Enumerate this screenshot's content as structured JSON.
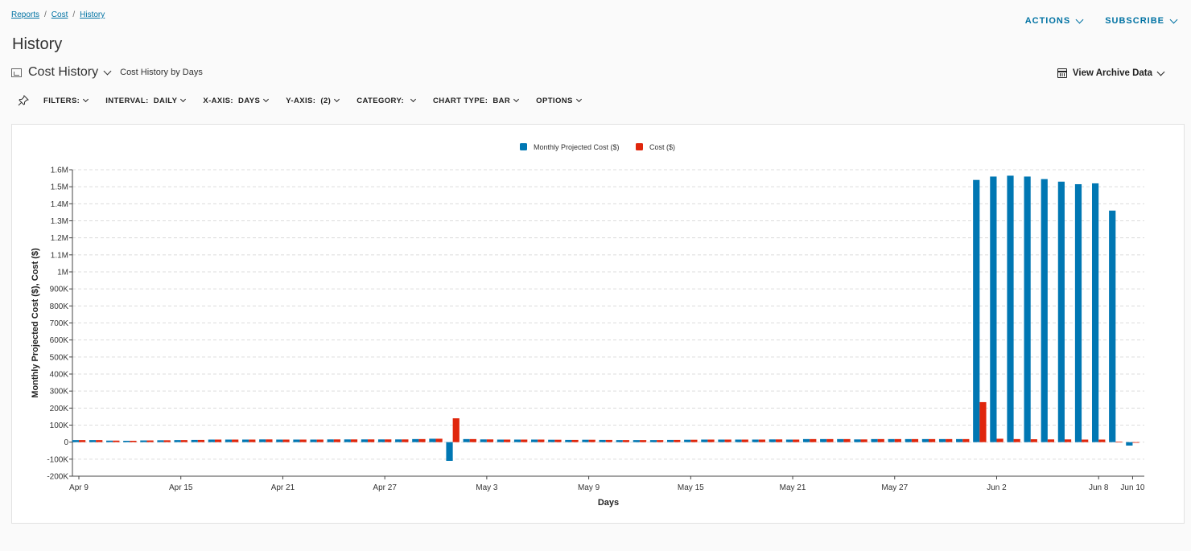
{
  "breadcrumb": {
    "items": [
      "Reports",
      "Cost",
      "History"
    ],
    "sep": "/"
  },
  "page": {
    "title": "History"
  },
  "actions": {
    "actions_label": "ACTIONS",
    "subscribe_label": "SUBSCRIBE"
  },
  "report": {
    "name": "Cost History",
    "subtitle": "Cost History by Days"
  },
  "archive": {
    "label": "View Archive Data"
  },
  "toolbar": {
    "filters": "FILTERS:",
    "interval": "INTERVAL:  DAILY",
    "xaxis": "X-AXIS:  DAYS",
    "yaxis": "Y-AXIS:  (2)",
    "category": "CATEGORY:",
    "chart_type": "CHART TYPE:  BAR",
    "options": "OPTIONS"
  },
  "colors": {
    "accent": "#0072a3",
    "series_blue": "#0077b3",
    "series_red": "#e0260c"
  },
  "chart_data": {
    "type": "bar",
    "xlabel": "Days",
    "ylabel": "Monthly Projected Cost ($), Cost ($)",
    "ylim": [
      -200000,
      1600000
    ],
    "yticks": [
      -200000,
      -100000,
      0,
      100000,
      200000,
      300000,
      400000,
      500000,
      600000,
      700000,
      800000,
      900000,
      1000000,
      1100000,
      1200000,
      1300000,
      1400000,
      1500000,
      1600000
    ],
    "ytick_labels": [
      "-200K",
      "-100K",
      "0",
      "100K",
      "200K",
      "300K",
      "400K",
      "500K",
      "600K",
      "700K",
      "800K",
      "900K",
      "1M",
      "1.1M",
      "1.2M",
      "1.3M",
      "1.4M",
      "1.5M",
      "1.6M"
    ],
    "x_tick_labels": [
      "Apr 9",
      "Apr 15",
      "Apr 21",
      "Apr 27",
      "May 3",
      "May 9",
      "May 15",
      "May 21",
      "May 27",
      "Jun 2",
      "Jun 8",
      "Jun 10"
    ],
    "legend_position": "top",
    "grid": true,
    "categories": [
      "Apr 9",
      "Apr 10",
      "Apr 11",
      "Apr 12",
      "Apr 13",
      "Apr 14",
      "Apr 15",
      "Apr 16",
      "Apr 17",
      "Apr 18",
      "Apr 19",
      "Apr 20",
      "Apr 21",
      "Apr 22",
      "Apr 23",
      "Apr 24",
      "Apr 25",
      "Apr 26",
      "Apr 27",
      "Apr 28",
      "Apr 29",
      "Apr 30",
      "May 1",
      "May 2",
      "May 3",
      "May 4",
      "May 5",
      "May 6",
      "May 7",
      "May 8",
      "May 9",
      "May 10",
      "May 11",
      "May 12",
      "May 13",
      "May 14",
      "May 15",
      "May 16",
      "May 17",
      "May 18",
      "May 19",
      "May 20",
      "May 21",
      "May 22",
      "May 23",
      "May 24",
      "May 25",
      "May 26",
      "May 27",
      "May 28",
      "May 29",
      "May 30",
      "May 31",
      "Jun 1",
      "Jun 2",
      "Jun 3",
      "Jun 4",
      "Jun 5",
      "Jun 6",
      "Jun 7",
      "Jun 8",
      "Jun 9",
      "Jun 10"
    ],
    "series": [
      {
        "name": "Monthly Projected Cost ($)",
        "color": "#0077b3",
        "values": [
          12000,
          12000,
          9000,
          8000,
          10000,
          11000,
          12000,
          13000,
          15000,
          15000,
          15000,
          16000,
          15000,
          15000,
          15000,
          16000,
          16000,
          16000,
          16000,
          16000,
          18000,
          20000,
          -110000,
          18000,
          16000,
          15000,
          15000,
          15000,
          14000,
          13000,
          14000,
          13000,
          12000,
          12000,
          12000,
          13000,
          14000,
          15000,
          15000,
          15000,
          15000,
          16000,
          15000,
          18000,
          18000,
          18000,
          16000,
          18000,
          18000,
          18000,
          18000,
          18000,
          18000,
          1540000,
          1560000,
          1565000,
          1560000,
          1545000,
          1530000,
          1515000,
          1520000,
          1360000,
          -20000
        ]
      },
      {
        "name": "Cost ($)",
        "color": "#e0260c",
        "values": [
          12000,
          12000,
          9000,
          8000,
          10000,
          11000,
          12000,
          13000,
          15000,
          15000,
          15000,
          16000,
          15000,
          15000,
          15000,
          16000,
          16000,
          16000,
          16000,
          16000,
          18000,
          20000,
          140000,
          18000,
          16000,
          15000,
          15000,
          15000,
          14000,
          13000,
          14000,
          13000,
          12000,
          12000,
          12000,
          13000,
          14000,
          15000,
          15000,
          15000,
          15000,
          16000,
          15000,
          18000,
          18000,
          18000,
          16000,
          18000,
          18000,
          18000,
          18000,
          18000,
          18000,
          235000,
          20000,
          18000,
          17000,
          16000,
          16000,
          15000,
          15000,
          3000,
          0
        ]
      }
    ]
  }
}
